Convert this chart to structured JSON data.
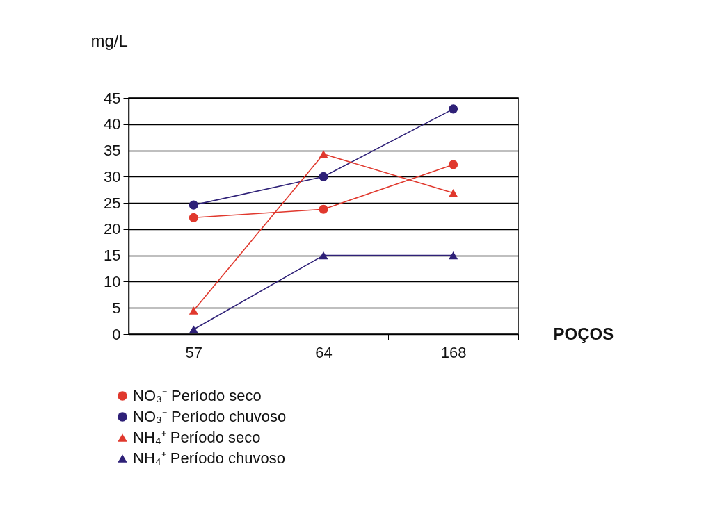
{
  "chart_data": {
    "type": "line",
    "ylabel": "mg/L",
    "xlabel": "POÇOS",
    "categories": [
      "57",
      "64",
      "168"
    ],
    "series": [
      {
        "name": "NO₃⁻   Período seco",
        "color": "#e0382d",
        "marker": "circle",
        "values": [
          22.2,
          23.8,
          32.3
        ]
      },
      {
        "name": "NO₃⁻   Período chuvoso",
        "color": "#2e2077",
        "marker": "circle",
        "values": [
          24.6,
          30.0,
          42.9
        ]
      },
      {
        "name": "NH₄⁺   Período seco",
        "color": "#e0382d",
        "marker": "triangle",
        "values": [
          4.5,
          34.3,
          26.9
        ]
      },
      {
        "name": "NH₄⁺   Período chuvoso",
        "color": "#2e2077",
        "marker": "triangle",
        "values": [
          0.9,
          15,
          15
        ]
      }
    ],
    "ylim": [
      0,
      45
    ],
    "yticks": [
      0,
      5,
      10,
      15,
      20,
      25,
      30,
      35,
      40,
      45
    ],
    "grid": "y",
    "legend": "bottom",
    "line_style": "solid"
  }
}
